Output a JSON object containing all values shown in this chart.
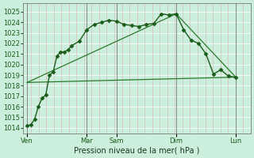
{
  "xlabel": "Pression niveau de la mer( hPa )",
  "bg_color": "#cceedd",
  "plot_bg_color": "#cceedd",
  "ylim": [
    1013.5,
    1025.8
  ],
  "yticks": [
    1014,
    1015,
    1016,
    1017,
    1018,
    1019,
    1020,
    1021,
    1022,
    1023,
    1024,
    1025
  ],
  "day_labels": [
    "Ven",
    "Mar",
    "Sam",
    "Dim",
    "Lun"
  ],
  "day_x": [
    0,
    16,
    24,
    40,
    56
  ],
  "xlim": [
    -1,
    60
  ],
  "vline_x": [
    0,
    16,
    24,
    40,
    56
  ],
  "hgrid_color": "#ffffff",
  "vgrid_color": "#ddb0b0",
  "line1_x": [
    0,
    1,
    2,
    3,
    4,
    5,
    6,
    7,
    8,
    9,
    10,
    11,
    12,
    14,
    16,
    18,
    20,
    22,
    24,
    26,
    28,
    30,
    32,
    34,
    36,
    38,
    40,
    42,
    44,
    46,
    48,
    50,
    52,
    54,
    56
  ],
  "line1_y": [
    1014.2,
    1014.3,
    1014.8,
    1016.0,
    1016.8,
    1017.1,
    1019.0,
    1019.3,
    1020.8,
    1021.2,
    1021.2,
    1021.4,
    1021.8,
    1022.2,
    1023.3,
    1023.8,
    1024.0,
    1024.2,
    1024.1,
    1023.8,
    1023.7,
    1023.6,
    1023.8,
    1023.9,
    1024.8,
    1024.7,
    1024.8,
    1023.3,
    1022.3,
    1022.0,
    1021.0,
    1019.1,
    1019.5,
    1018.9,
    1018.8
  ],
  "line1_color": "#1a5c1a",
  "line1_lw": 1.0,
  "line1_ms": 2.5,
  "line2_x": [
    0,
    56
  ],
  "line2_y": [
    1018.3,
    1018.8
  ],
  "line2_color": "#2a7a2a",
  "line2_lw": 0.9,
  "line3_x": [
    0,
    40,
    56
  ],
  "line3_y": [
    1018.3,
    1024.8,
    1018.8
  ],
  "line3_color": "#2a7a2a",
  "line3_lw": 0.9,
  "tick_fontsize": 6,
  "label_fontsize": 7,
  "tick_color": "#1a5c1a",
  "label_color": "#1a3a1a"
}
